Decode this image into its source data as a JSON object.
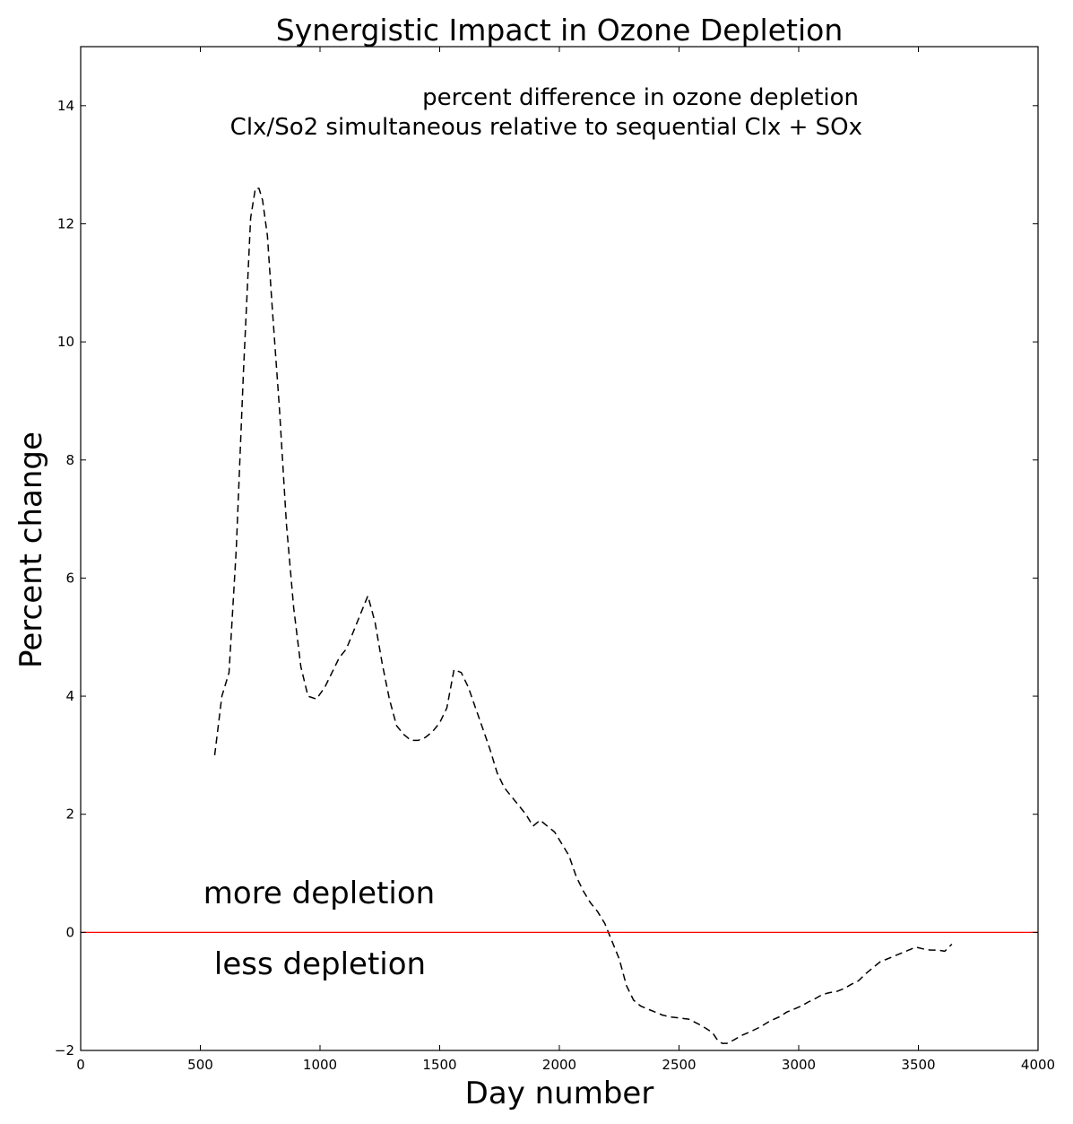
{
  "chart_data": {
    "type": "line",
    "title": "Synergistic Impact in Ozone Depletion",
    "xlabel": "Day number",
    "ylabel": "Percent change",
    "xlim": [
      0,
      4000
    ],
    "ylim": [
      -2,
      15
    ],
    "xticks": [
      0,
      500,
      1000,
      1500,
      2000,
      2500,
      3000,
      3500,
      4000
    ],
    "yticks": [
      -2,
      0,
      2,
      4,
      6,
      8,
      10,
      12,
      14
    ],
    "xtick_labels": [
      "0",
      "500",
      "1000",
      "1500",
      "2000",
      "2500",
      "3000",
      "3500",
      "4000"
    ],
    "ytick_labels": [
      "−2",
      "0",
      "2",
      "4",
      "6",
      "8",
      "10",
      "12",
      "14"
    ],
    "grid": false,
    "annotation_lines": [
      "percent difference in ozone depletion",
      "Clx/So2 simultaneous relative to sequential Clx + SOx"
    ],
    "region_labels": {
      "above": "more depletion",
      "below": "less depletion"
    },
    "reference_line": {
      "y": 0,
      "color": "#ff0000"
    },
    "series": [
      {
        "color": "#000000",
        "style": "dashed",
        "x": [
          560,
          590,
          620,
          650,
          680,
          710,
          730,
          745,
          760,
          780,
          800,
          830,
          860,
          890,
          920,
          950,
          985,
          1020,
          1050,
          1080,
          1110,
          1140,
          1170,
          1200,
          1230,
          1260,
          1290,
          1320,
          1350,
          1380,
          1410,
          1440,
          1470,
          1500,
          1530,
          1560,
          1590,
          1620,
          1650,
          1680,
          1710,
          1740,
          1770,
          1800,
          1830,
          1860,
          1890,
          1920,
          1950,
          1980,
          2010,
          2040,
          2070,
          2100,
          2130,
          2160,
          2190,
          2220,
          2250,
          2280,
          2310,
          2340,
          2370,
          2400,
          2430,
          2460,
          2500,
          2540,
          2580,
          2610,
          2640,
          2660,
          2680,
          2700,
          2730,
          2760,
          2800,
          2840,
          2880,
          2920,
          2950,
          2980,
          3010,
          3040,
          3070,
          3100,
          3130,
          3160,
          3190,
          3220,
          3250,
          3280,
          3310,
          3340,
          3370,
          3400,
          3430,
          3460,
          3490,
          3520,
          3550,
          3580,
          3610,
          3640
        ],
        "y": [
          3.0,
          4.0,
          4.4,
          6.5,
          9.5,
          12.1,
          12.6,
          12.6,
          12.4,
          11.8,
          10.6,
          8.9,
          6.9,
          5.5,
          4.5,
          4.0,
          3.95,
          4.15,
          4.4,
          4.65,
          4.8,
          5.1,
          5.4,
          5.7,
          5.25,
          4.55,
          3.95,
          3.5,
          3.35,
          3.25,
          3.25,
          3.3,
          3.4,
          3.55,
          3.8,
          4.45,
          4.4,
          4.15,
          3.8,
          3.45,
          3.1,
          2.7,
          2.45,
          2.3,
          2.15,
          2.0,
          1.8,
          1.9,
          1.8,
          1.7,
          1.5,
          1.3,
          0.95,
          0.7,
          0.5,
          0.35,
          0.15,
          -0.15,
          -0.45,
          -0.9,
          -1.15,
          -1.25,
          -1.3,
          -1.35,
          -1.4,
          -1.43,
          -1.45,
          -1.47,
          -1.55,
          -1.62,
          -1.7,
          -1.82,
          -1.88,
          -1.88,
          -1.82,
          -1.75,
          -1.68,
          -1.6,
          -1.5,
          -1.43,
          -1.35,
          -1.3,
          -1.25,
          -1.18,
          -1.12,
          -1.05,
          -1.02,
          -1.0,
          -0.95,
          -0.88,
          -0.82,
          -0.7,
          -0.6,
          -0.5,
          -0.45,
          -0.4,
          -0.35,
          -0.3,
          -0.25,
          -0.28,
          -0.3,
          -0.3,
          -0.32,
          -0.2
        ]
      }
    ]
  }
}
